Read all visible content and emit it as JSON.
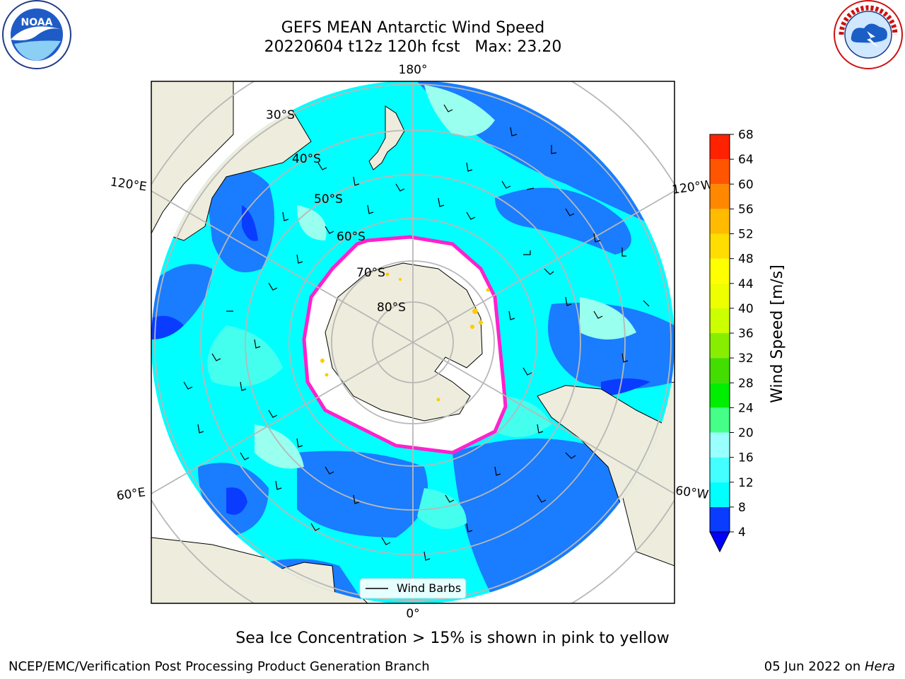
{
  "title": {
    "line1": "GEFS MEAN Antarctic Wind Speed",
    "line2": "20220604 t12z 120h fcst   Max: 23.20"
  },
  "logos": {
    "left": "noara-logo",
    "right": "nws-logo"
  },
  "map": {
    "projection": "south-polar-stereographic",
    "longitude_labels": [
      "180°",
      "120°E",
      "120°W",
      "60°E",
      "60°W",
      "0°"
    ],
    "latitude_labels": [
      "30°S",
      "40°S",
      "50°S",
      "60°S",
      "70°S",
      "80°S"
    ],
    "legend_label": "Wind Barbs",
    "colors": {
      "land": "#eeecdc",
      "ice": "#ffffff",
      "ice_edge": "#ff22cc",
      "wind_4_8": "#1a7cff",
      "wind_8_12": "#00ffff",
      "wind_12_16": "#44ffee",
      "wind_16_20": "#99ffee",
      "grid": "#b8b8b8"
    }
  },
  "colorbar": {
    "label": "Wind Speed [m/s]",
    "ticks": [
      "4",
      "8",
      "12",
      "16",
      "20",
      "24",
      "28",
      "32",
      "36",
      "40",
      "44",
      "48",
      "52",
      "56",
      "60",
      "64",
      "68"
    ],
    "colors": [
      "#0a3cff",
      "#00ffff",
      "#44ffff",
      "#99ffff",
      "#44ff88",
      "#00ee00",
      "#44dd00",
      "#88ee00",
      "#ccff00",
      "#eeff00",
      "#ffff00",
      "#ffdd00",
      "#ffbb00",
      "#ff8800",
      "#ff5500",
      "#ff2200"
    ],
    "extend_color": "#0000ff"
  },
  "caption": "Sea Ice Concentration > 15% is shown in pink to yellow",
  "footer": {
    "left": "NCEP/EMC/Verification Post Processing Product Generation Branch",
    "right_date": "05 Jun 2022 on ",
    "right_host": "Hera"
  }
}
